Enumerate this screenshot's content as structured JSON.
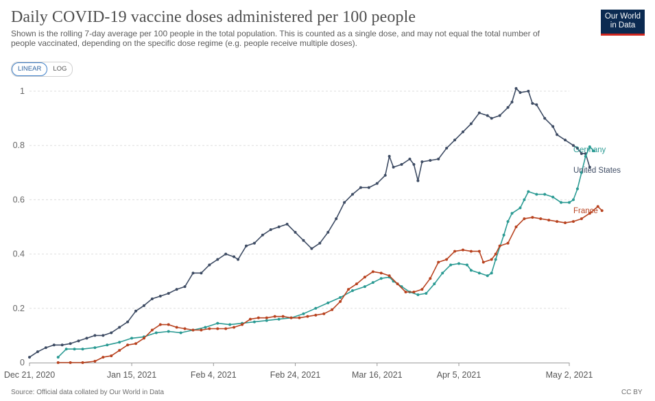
{
  "header": {
    "title": "Daily COVID-19 vaccine doses administered per 100 people",
    "subtitle": "Shown is the rolling 7-day average per 100 people in the total population. This is counted as a single dose, and may not equal the total number of people vaccinated, depending on the specific dose regime (e.g. people receive multiple doses).",
    "logo_line1": "Our World",
    "logo_line2": "in Data"
  },
  "scale_toggle": {
    "linear_label": "LINEAR",
    "log_label": "LOG",
    "selected": "LINEAR"
  },
  "footer": {
    "source": "Source: Official data collated by Our World in Data",
    "license": "CC BY"
  },
  "chart_data": {
    "type": "line",
    "title": "Daily COVID-19 vaccine doses administered per 100 people",
    "xlabel": "",
    "ylabel": "",
    "x_range_days": [
      0,
      132
    ],
    "ylim": [
      0,
      1
    ],
    "y_ticks": [
      0,
      0.2,
      0.4,
      0.6,
      0.8,
      1
    ],
    "x_ticks": [
      {
        "label": "Dec 21, 2020",
        "day": 0
      },
      {
        "label": "Jan 15, 2021",
        "day": 25
      },
      {
        "label": "Feb 4, 2021",
        "day": 45
      },
      {
        "label": "Feb 24, 2021",
        "day": 65
      },
      {
        "label": "Mar 16, 2021",
        "day": 85
      },
      {
        "label": "Apr 5, 2021",
        "day": 105
      },
      {
        "label": "May 2, 2021",
        "day": 132
      }
    ],
    "grid": true,
    "legend": "line-end labels",
    "series": [
      {
        "name": "United States",
        "color": "#3d4b63",
        "points": [
          [
            0,
            0.02
          ],
          [
            2,
            0.04
          ],
          [
            4,
            0.055
          ],
          [
            6,
            0.065
          ],
          [
            8,
            0.065
          ],
          [
            10,
            0.07
          ],
          [
            12,
            0.08
          ],
          [
            14,
            0.09
          ],
          [
            16,
            0.1
          ],
          [
            18,
            0.1
          ],
          [
            20,
            0.11
          ],
          [
            22,
            0.13
          ],
          [
            24,
            0.15
          ],
          [
            26,
            0.19
          ],
          [
            28,
            0.21
          ],
          [
            30,
            0.235
          ],
          [
            32,
            0.245
          ],
          [
            34,
            0.255
          ],
          [
            36,
            0.27
          ],
          [
            38,
            0.28
          ],
          [
            40,
            0.33
          ],
          [
            42,
            0.33
          ],
          [
            44,
            0.36
          ],
          [
            46,
            0.38
          ],
          [
            48,
            0.4
          ],
          [
            50,
            0.39
          ],
          [
            51,
            0.38
          ],
          [
            53,
            0.43
          ],
          [
            55,
            0.44
          ],
          [
            57,
            0.47
          ],
          [
            59,
            0.49
          ],
          [
            61,
            0.5
          ],
          [
            63,
            0.51
          ],
          [
            65,
            0.48
          ],
          [
            67,
            0.45
          ],
          [
            69,
            0.42
          ],
          [
            71,
            0.44
          ],
          [
            73,
            0.48
          ],
          [
            75,
            0.53
          ],
          [
            77,
            0.59
          ],
          [
            79,
            0.62
          ],
          [
            81,
            0.645
          ],
          [
            83,
            0.645
          ],
          [
            85,
            0.66
          ],
          [
            87,
            0.69
          ],
          [
            88,
            0.76
          ],
          [
            89,
            0.72
          ],
          [
            91,
            0.73
          ],
          [
            93,
            0.75
          ],
          [
            94,
            0.73
          ],
          [
            95,
            0.67
          ],
          [
            96,
            0.74
          ],
          [
            98,
            0.745
          ],
          [
            100,
            0.75
          ],
          [
            102,
            0.79
          ],
          [
            104,
            0.82
          ],
          [
            106,
            0.85
          ],
          [
            108,
            0.88
          ],
          [
            110,
            0.92
          ],
          [
            112,
            0.91
          ],
          [
            113,
            0.9
          ],
          [
            115,
            0.91
          ],
          [
            117,
            0.94
          ],
          [
            118,
            0.96
          ],
          [
            119,
            1.01
          ],
          [
            120,
            0.995
          ],
          [
            122,
            1.0
          ],
          [
            123,
            0.955
          ],
          [
            124,
            0.95
          ],
          [
            126,
            0.9
          ],
          [
            128,
            0.87
          ],
          [
            129,
            0.84
          ],
          [
            131,
            0.82
          ],
          [
            133,
            0.8
          ],
          [
            134,
            0.79
          ],
          [
            135,
            0.77
          ],
          [
            136,
            0.77
          ],
          [
            137,
            0.72
          ]
        ]
      },
      {
        "name": "Germany",
        "color": "#2a9a93",
        "points": [
          [
            7,
            0.02
          ],
          [
            9,
            0.05
          ],
          [
            11,
            0.05
          ],
          [
            13,
            0.05
          ],
          [
            16,
            0.055
          ],
          [
            19,
            0.065
          ],
          [
            22,
            0.075
          ],
          [
            25,
            0.09
          ],
          [
            28,
            0.095
          ],
          [
            31,
            0.11
          ],
          [
            34,
            0.115
          ],
          [
            37,
            0.11
          ],
          [
            40,
            0.12
          ],
          [
            43,
            0.13
          ],
          [
            46,
            0.145
          ],
          [
            49,
            0.14
          ],
          [
            52,
            0.145
          ],
          [
            55,
            0.15
          ],
          [
            58,
            0.155
          ],
          [
            61,
            0.16
          ],
          [
            64,
            0.165
          ],
          [
            67,
            0.18
          ],
          [
            70,
            0.2
          ],
          [
            73,
            0.22
          ],
          [
            76,
            0.24
          ],
          [
            79,
            0.265
          ],
          [
            82,
            0.28
          ],
          [
            84,
            0.295
          ],
          [
            86,
            0.31
          ],
          [
            88,
            0.315
          ],
          [
            89,
            0.3
          ],
          [
            91,
            0.28
          ],
          [
            93,
            0.26
          ],
          [
            95,
            0.25
          ],
          [
            97,
            0.255
          ],
          [
            99,
            0.29
          ],
          [
            101,
            0.33
          ],
          [
            103,
            0.36
          ],
          [
            105,
            0.365
          ],
          [
            107,
            0.36
          ],
          [
            108,
            0.34
          ],
          [
            110,
            0.33
          ],
          [
            112,
            0.32
          ],
          [
            113,
            0.33
          ],
          [
            114,
            0.38
          ],
          [
            116,
            0.47
          ],
          [
            117,
            0.52
          ],
          [
            118,
            0.55
          ],
          [
            120,
            0.57
          ],
          [
            121,
            0.6
          ],
          [
            122,
            0.63
          ],
          [
            124,
            0.62
          ],
          [
            126,
            0.62
          ],
          [
            128,
            0.61
          ],
          [
            130,
            0.59
          ],
          [
            132,
            0.59
          ],
          [
            133,
            0.6
          ],
          [
            134,
            0.64
          ],
          [
            135,
            0.7
          ],
          [
            136,
            0.76
          ],
          [
            137,
            0.795
          ],
          [
            138,
            0.78
          ]
        ]
      },
      {
        "name": "France",
        "color": "#b8421f",
        "points": [
          [
            7,
            0.0
          ],
          [
            10,
            0.0
          ],
          [
            13,
            0.0
          ],
          [
            16,
            0.005
          ],
          [
            18,
            0.02
          ],
          [
            20,
            0.025
          ],
          [
            22,
            0.045
          ],
          [
            24,
            0.065
          ],
          [
            26,
            0.07
          ],
          [
            28,
            0.09
          ],
          [
            30,
            0.12
          ],
          [
            32,
            0.14
          ],
          [
            34,
            0.14
          ],
          [
            36,
            0.13
          ],
          [
            38,
            0.125
          ],
          [
            40,
            0.12
          ],
          [
            42,
            0.12
          ],
          [
            44,
            0.125
          ],
          [
            46,
            0.125
          ],
          [
            48,
            0.125
          ],
          [
            50,
            0.13
          ],
          [
            52,
            0.14
          ],
          [
            54,
            0.16
          ],
          [
            56,
            0.165
          ],
          [
            58,
            0.165
          ],
          [
            60,
            0.17
          ],
          [
            62,
            0.17
          ],
          [
            64,
            0.165
          ],
          [
            66,
            0.165
          ],
          [
            68,
            0.17
          ],
          [
            70,
            0.175
          ],
          [
            72,
            0.18
          ],
          [
            74,
            0.195
          ],
          [
            76,
            0.225
          ],
          [
            78,
            0.27
          ],
          [
            80,
            0.29
          ],
          [
            82,
            0.315
          ],
          [
            84,
            0.335
          ],
          [
            86,
            0.33
          ],
          [
            88,
            0.32
          ],
          [
            90,
            0.29
          ],
          [
            92,
            0.26
          ],
          [
            94,
            0.26
          ],
          [
            96,
            0.27
          ],
          [
            98,
            0.31
          ],
          [
            100,
            0.37
          ],
          [
            102,
            0.38
          ],
          [
            104,
            0.41
          ],
          [
            106,
            0.415
          ],
          [
            108,
            0.41
          ],
          [
            110,
            0.41
          ],
          [
            111,
            0.37
          ],
          [
            113,
            0.38
          ],
          [
            114,
            0.4
          ],
          [
            115,
            0.43
          ],
          [
            117,
            0.44
          ],
          [
            119,
            0.5
          ],
          [
            121,
            0.53
          ],
          [
            123,
            0.535
          ],
          [
            125,
            0.53
          ],
          [
            127,
            0.525
          ],
          [
            129,
            0.52
          ],
          [
            131,
            0.515
          ],
          [
            133,
            0.52
          ],
          [
            135,
            0.53
          ],
          [
            137,
            0.55
          ],
          [
            139,
            0.575
          ],
          [
            140,
            0.56
          ]
        ]
      }
    ]
  }
}
